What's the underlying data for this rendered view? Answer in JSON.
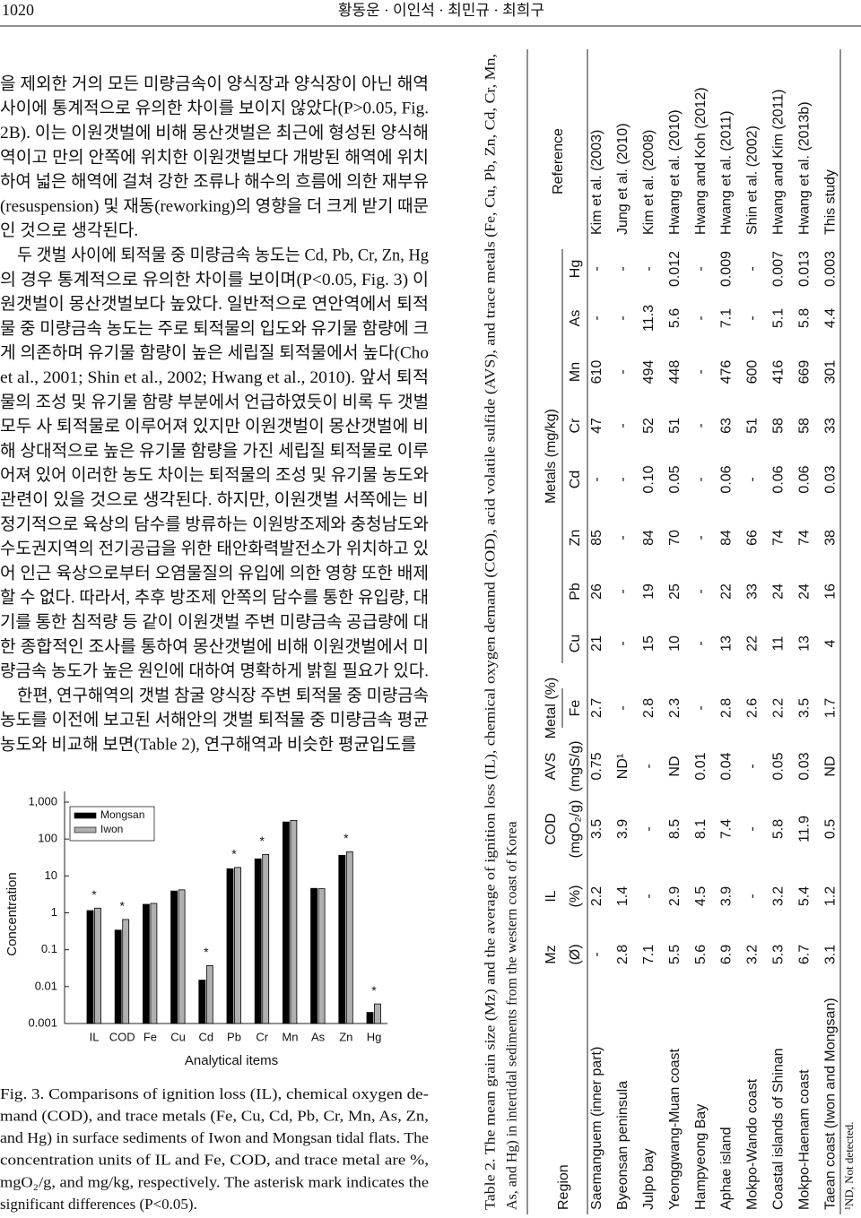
{
  "header": {
    "page_number": "1020",
    "authors": "황동운 · 이인석 · 최민규 · 최희구"
  },
  "body": {
    "lines": [
      "을 제외한 거의 모든 미량금속이 양식장과 양식장이 아닌 해역",
      "사이에 통계적으로 유의한 차이를 보이지 않았다(P>0.05, Fig.",
      "2B). 이는 이원갯벌에 비해 몽산갯벌은 최근에 형성된 양식해",
      "역이고 만의 안쪽에 위치한 이원갯벌보다 개방된 해역에 위치",
      "하여 넓은 해역에 걸쳐 강한 조류나 해수의 흐름에 의한 재부유",
      "(resuspension) 및 재동(reworking)의 영향을 더 크게 받기 때문",
      "인 것으로 생각된다.",
      "두 갯벌 사이에 퇴적물 중 미량금속 농도는 Cd, Pb, Cr, Zn, Hg",
      "의 경우 통계적으로 유의한 차이를 보이며(P<0.05, Fig. 3) 이",
      "원갯벌이 몽산갯벌보다 높았다. 일반적으로 연안역에서 퇴적",
      "물 중 미량금속 농도는 주로 퇴적물의 입도와 유기물 함량에 크",
      "게 의존하며 유기물 함량이 높은 세립질 퇴적물에서 높다(Cho",
      "et al., 2001; Shin et al., 2002; Hwang et al., 2010). 앞서 퇴적",
      "물의 조성 및 유기물 함량 부분에서 언급하였듯이 비록 두 갯벌",
      "모두 사 퇴적물로 이루어져 있지만 이원갯벌이 몽산갯벌에 비",
      "해 상대적으로 높은 유기물 함량을 가진 세립질 퇴적물로 이루",
      "어져 있어 이러한 농도 차이는 퇴적물의 조성 및 유기물 농도와",
      "관련이 있을 것으로 생각된다. 하지만, 이원갯벌 서쪽에는 비",
      "정기적으로 육상의 담수를 방류하는 이원방조제와 충청남도와",
      "수도권지역의 전기공급을 위한 태안화력발전소가 위치하고 있",
      "어 인근 육상으로부터 오염물질의 유입에 의한 영향 또한 배제",
      "할 수 없다. 따라서, 추후 방조제 안쪽의 담수를 통한 유입량, 대",
      "기를 통한 침적량 등 같이 이원갯벌 주변 미량금속 공급량에 대",
      "한 종합적인 조사를 통하여 몽산갯벌에 비해 이원갯벌에서 미",
      "량금속 농도가 높은 원인에 대하여 명확하게 밝힐 필요가 있다.",
      "한편, 연구해역의 갯벌 참굴 양식장 주변 퇴적물 중 미량금속",
      "농도를 이전에 보고된 서해안의 갯벌 퇴적물 중 미량금속 평균",
      "농도와 비교해 보면(Table 2), 연구해역과 비슷한 평균입도를"
    ]
  },
  "figure": {
    "chart_data": {
      "type": "bar",
      "y_label": "Concentration",
      "x_label": "Analytical items",
      "log_scale": true,
      "legend": "upper left",
      "categories": [
        "IL",
        "COD",
        "Fe",
        "Cu",
        "Cd",
        "Pb",
        "Cr",
        "Mn",
        "As",
        "Zn",
        "Hg"
      ],
      "series": [
        {
          "name": "Mongsan",
          "color": "#000000",
          "values": [
            1.15,
            0.34,
            1.7,
            3.9,
            0.015,
            15.6,
            29,
            290,
            4.6,
            36,
            0.002
          ]
        },
        {
          "name": "Iwon",
          "color": "#b0b0b0",
          "values": [
            1.34,
            0.66,
            1.8,
            4.2,
            0.037,
            17,
            38,
            320,
            4.5,
            45,
            0.0034
          ]
        }
      ],
      "significance": [
        "*",
        "*",
        null,
        null,
        "*",
        "*",
        "*",
        null,
        null,
        "*",
        "*"
      ],
      "ylim": [
        0.001,
        1000
      ],
      "yticks": [
        0.001,
        0.01,
        0.1,
        1,
        10,
        100,
        {
          "value": 1000,
          "label": "1,000"
        }
      ]
    },
    "caption": {
      "lines": [
        "Fig. 3. Comparisons of ignition loss (IL), chemical oxygen de-",
        "mand (COD), and trace metals (Fe, Cu, Cd, Pb, Cr, Mn, As, Zn,",
        "and Hg) in surface sediments of Iwon and Mongsan tidal flats. The",
        "concentration units of IL and Fe, COD, and trace metal are %,",
        "mgO₂/g, and mg/kg, respectively. The asterisk mark indicates the",
        "significant differences (P<0.05)."
      ]
    }
  },
  "table": {
    "caption": {
      "lines": [
        "Table 2. The mean grain size (Mz) and the average of ignition loss (IL), chemical oxygen demand (COD), acid volatile sulfide (AVS), and trace metals (Fe, Cu, Pb, Zn, Cd, Cr, Mn,",
        "As, and Hg) in intertidal sediments from the western coast of Korea"
      ]
    },
    "region_header": "Region",
    "reference_header": "Reference",
    "columns": [
      {
        "name": "Mz",
        "unit": "(Ø)"
      },
      {
        "name": "IL",
        "unit": "(%)"
      },
      {
        "name": "COD",
        "unit": "(mgO₂/g)"
      },
      {
        "name": "AVS",
        "unit": "(mgS/g)"
      },
      {
        "group": "Metal (%)",
        "columns": [
          "Fe"
        ]
      },
      {
        "group": "Metals (mg/kg)",
        "columns": [
          "Cu",
          "Pb",
          "Zn",
          "Cd",
          "Cr",
          "Mn",
          "As",
          "Hg"
        ]
      }
    ],
    "rows": [
      {
        "region": "Saemanguem (inner part)",
        "values": [
          "-",
          "2.2",
          "3.5",
          "0.75",
          "2.7",
          "21",
          "26",
          "85",
          "-",
          "47",
          "610",
          "-",
          "-"
        ],
        "reference": "Kim et al. (2003)"
      },
      {
        "region": "Byeonsan peninsula",
        "values": [
          "2.8",
          "1.4",
          "3.9",
          "ND¹",
          "-",
          "-",
          "-",
          "-",
          "-",
          "-",
          "-",
          "-",
          "-"
        ],
        "reference": "Jung et al. (2010)"
      },
      {
        "region": "Julpo bay",
        "values": [
          "7.1",
          "-",
          "-",
          "-",
          "2.8",
          "15",
          "19",
          "84",
          "0.10",
          "52",
          "494",
          "11.3",
          "-"
        ],
        "reference": "Kim et al. (2008)"
      },
      {
        "region": "Yeonggwang-Muan coast",
        "values": [
          "5.5",
          "2.9",
          "8.5",
          "ND",
          "2.3",
          "10",
          "25",
          "70",
          "0.05",
          "51",
          "448",
          "5.6",
          "0.012"
        ],
        "reference": "Hwang et al. (2010)"
      },
      {
        "region": "Hampyeong Bay",
        "values": [
          "5.6",
          "4.5",
          "8.1",
          "0.01",
          "-",
          "-",
          "-",
          "-",
          "-",
          "-",
          "-",
          "-",
          "-"
        ],
        "reference": "Hwang and Koh (2012)"
      },
      {
        "region": "Aphae island",
        "values": [
          "6.9",
          "3.9",
          "7.4",
          "0.04",
          "2.8",
          "13",
          "22",
          "84",
          "0.06",
          "63",
          "476",
          "7.1",
          "0.009"
        ],
        "reference": "Hwang et al. (2011)"
      },
      {
        "region": "Mokpo-Wando coast",
        "values": [
          "3.2",
          "-",
          "-",
          "-",
          "2.6",
          "22",
          "33",
          "66",
          "-",
          "51",
          "600",
          "-",
          "-"
        ],
        "reference": "Shin et al. (2002)"
      },
      {
        "region": "Coastal islands of Shinan",
        "values": [
          "5.3",
          "3.2",
          "5.8",
          "0.05",
          "2.2",
          "11",
          "24",
          "74",
          "0.06",
          "58",
          "416",
          "5.1",
          "0.007"
        ],
        "reference": "Hwang and Kim (2011)"
      },
      {
        "region": "Mokpo-Haenam coast",
        "values": [
          "6.7",
          "5.4",
          "11.9",
          "0.03",
          "3.5",
          "13",
          "24",
          "74",
          "0.06",
          "58",
          "669",
          "5.8",
          "0.013"
        ],
        "reference": "Hwang et al. (2013b)"
      },
      {
        "region": "Taean coast (Iwon and Mongsan)",
        "values": [
          "3.1",
          "1.2",
          "0.5",
          "ND",
          "1.7",
          "4",
          "16",
          "38",
          "0.03",
          "33",
          "301",
          "4.4",
          "0.003"
        ],
        "reference": "This study"
      }
    ],
    "footnote": "¹ND, Not detected."
  }
}
